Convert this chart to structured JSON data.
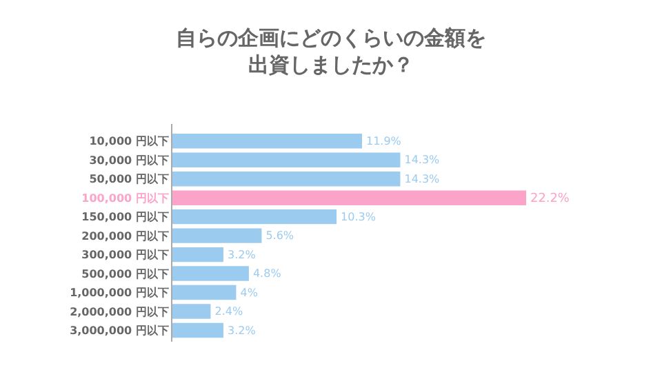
{
  "chart_data": {
    "type": "bar",
    "orientation": "horizontal",
    "title": "自らの企画にどのくらいの金額を出資しましたか？",
    "categories": [
      "10,000 円以下",
      "30,000 円以下",
      "50,000 円以下",
      "100,000 円以下",
      "150,000 円以下",
      "200,000 円以下",
      "300,000 円以下",
      "500,000 円以下",
      "1,000,000 円以下",
      "2,000,000 円以下",
      "3,000,000 円以下"
    ],
    "values": [
      11.9,
      14.3,
      14.3,
      22.2,
      10.3,
      5.6,
      3.2,
      4.8,
      4,
      2.4,
      3.2
    ],
    "value_labels": [
      "11.9%",
      "14.3%",
      "14.3%",
      "22.2%",
      "10.3%",
      "5.6%",
      "3.2%",
      "4.8%",
      "4%",
      "2.4%",
      "3.2%"
    ],
    "colors": [
      "#9ccbf0",
      "#9ccbf0",
      "#9ccbf0",
      "#fba3c9",
      "#9ccbf0",
      "#9ccbf0",
      "#9ccbf0",
      "#9ccbf0",
      "#9ccbf0",
      "#9ccbf0",
      "#9ccbf0"
    ],
    "tick_labels": "y"
  }
}
